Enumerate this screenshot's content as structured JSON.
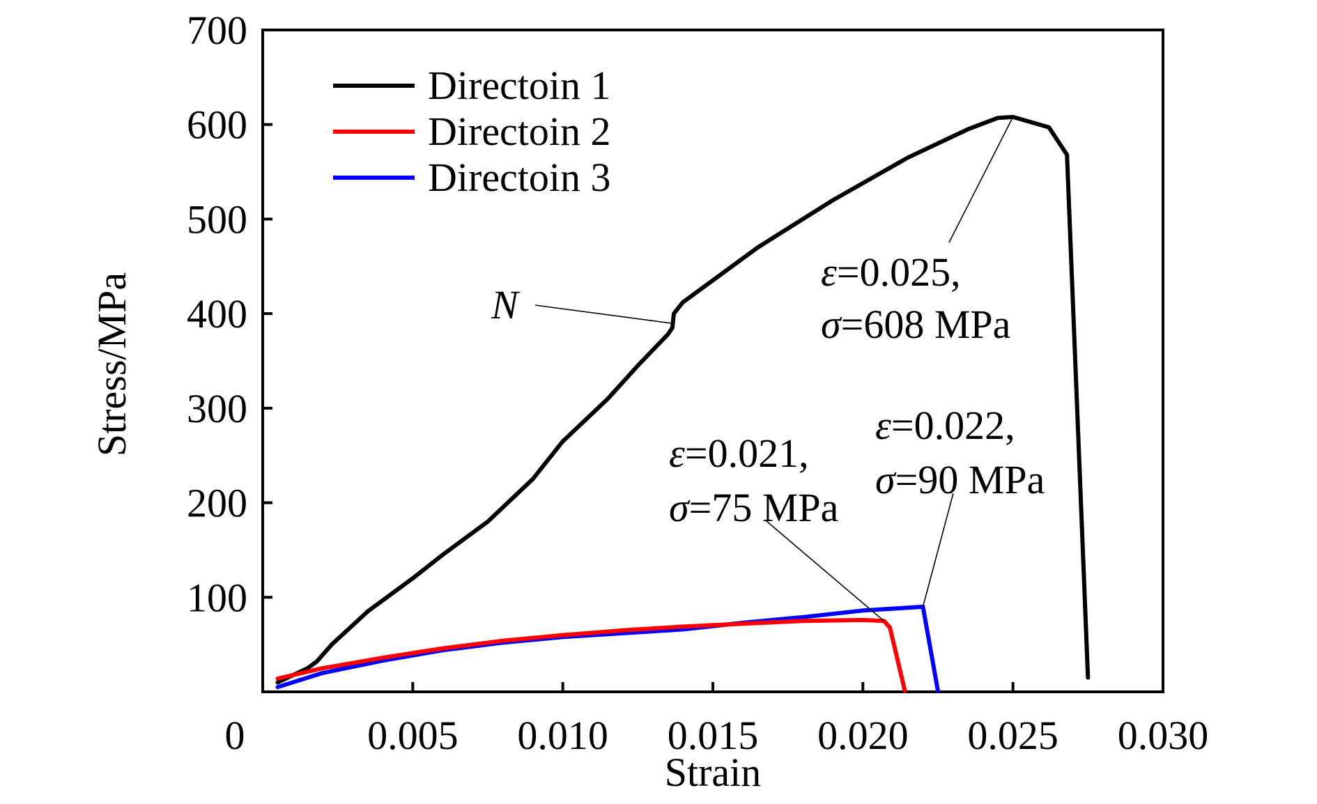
{
  "chart_data": {
    "type": "line",
    "xlabel": "Strain",
    "ylabel": "Stress/MPa",
    "xlim": [
      0,
      0.03
    ],
    "ylim": [
      0,
      700
    ],
    "x_ticks": [
      "0",
      "0.005",
      "0.010",
      "0.015",
      "0.020",
      "0.025",
      "0.030"
    ],
    "x_tick_values": [
      0,
      0.005,
      0.01,
      0.015,
      0.02,
      0.025,
      0.03
    ],
    "y_ticks": [
      "100",
      "200",
      "300",
      "400",
      "500",
      "600",
      "700"
    ],
    "y_tick_values": [
      100,
      200,
      300,
      400,
      500,
      600,
      700
    ],
    "grid": false,
    "legend_position": "top-left",
    "series": [
      {
        "name": "Directoin 1",
        "color": "#000000",
        "points": [
          [
            0.0005,
            10
          ],
          [
            0.0015,
            25
          ],
          [
            0.0018,
            32
          ],
          [
            0.0023,
            50
          ],
          [
            0.0035,
            85
          ],
          [
            0.005,
            120
          ],
          [
            0.006,
            145
          ],
          [
            0.0075,
            180
          ],
          [
            0.009,
            225
          ],
          [
            0.01,
            265
          ],
          [
            0.0115,
            310
          ],
          [
            0.0125,
            345
          ],
          [
            0.0135,
            378
          ],
          [
            0.01365,
            385
          ],
          [
            0.0137,
            400
          ],
          [
            0.014,
            412
          ],
          [
            0.0165,
            470
          ],
          [
            0.019,
            520
          ],
          [
            0.0215,
            565
          ],
          [
            0.0235,
            595
          ],
          [
            0.0245,
            607
          ],
          [
            0.025,
            608
          ],
          [
            0.0262,
            597
          ],
          [
            0.0268,
            568
          ],
          [
            0.0275,
            15
          ]
        ]
      },
      {
        "name": "Directoin 2",
        "color": "#ff0000",
        "points": [
          [
            0.0005,
            14
          ],
          [
            0.002,
            25
          ],
          [
            0.004,
            36
          ],
          [
            0.006,
            46
          ],
          [
            0.008,
            54
          ],
          [
            0.01,
            60
          ],
          [
            0.012,
            65
          ],
          [
            0.014,
            69
          ],
          [
            0.016,
            72
          ],
          [
            0.018,
            75
          ],
          [
            0.02,
            76
          ],
          [
            0.0207,
            75
          ],
          [
            0.0209,
            68
          ],
          [
            0.0214,
            1
          ]
        ]
      },
      {
        "name": "Directoin 3",
        "color": "#0000ff",
        "points": [
          [
            0.0005,
            5
          ],
          [
            0.002,
            20
          ],
          [
            0.004,
            33
          ],
          [
            0.006,
            44
          ],
          [
            0.008,
            52
          ],
          [
            0.01,
            58
          ],
          [
            0.012,
            62
          ],
          [
            0.014,
            66
          ],
          [
            0.016,
            73
          ],
          [
            0.018,
            79
          ],
          [
            0.02,
            86
          ],
          [
            0.021,
            88
          ],
          [
            0.022,
            90
          ],
          [
            0.0225,
            1
          ]
        ]
      }
    ],
    "annotations": [
      {
        "label": "N",
        "x": 0.0137,
        "y": 397
      },
      {
        "line1_symbol": "ε",
        "line1_value": "=0.025,",
        "line2_symbol": "σ",
        "line2_value": "=608 MPa",
        "x": 0.025,
        "y": 608
      },
      {
        "line1_symbol": "ε",
        "line1_value": "=0.021,",
        "line2_symbol": "σ",
        "line2_value": "=75 MPa",
        "x": 0.0207,
        "y": 75
      },
      {
        "line1_symbol": "ε",
        "line1_value": "=0.022,",
        "line2_symbol": "σ",
        "line2_value": "=90 MPa",
        "x": 0.022,
        "y": 90
      }
    ]
  }
}
